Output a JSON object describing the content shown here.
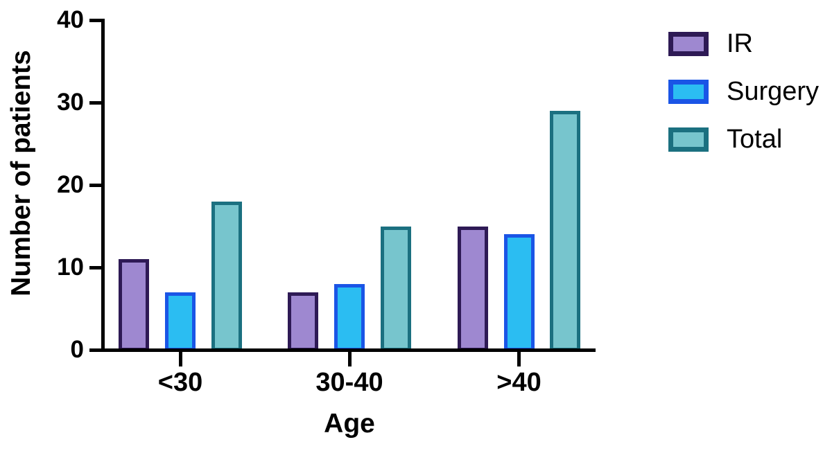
{
  "background": "#ffffff",
  "axis_color": "#000000",
  "text_color": "#000000",
  "chart_data": {
    "type": "bar",
    "title": "",
    "xlabel": "Age",
    "ylabel": "Number of patients",
    "categories": [
      "<30",
      "30-40",
      ">40"
    ],
    "series": [
      {
        "name": "IR",
        "values": [
          11,
          7,
          15
        ],
        "fill": "#9e88d0",
        "border": "#2e1a55"
      },
      {
        "name": "Surgery",
        "values": [
          7,
          8,
          14
        ],
        "fill": "#2bbdf2",
        "border": "#1a55e6"
      },
      {
        "name": "Total",
        "values": [
          18,
          15,
          29
        ],
        "fill": "#77c5cd",
        "border": "#1b7080"
      }
    ],
    "ylim": [
      0,
      40
    ],
    "yticks": [
      0,
      10,
      20,
      30,
      40
    ],
    "grid": false,
    "legend_position": "top-right"
  }
}
